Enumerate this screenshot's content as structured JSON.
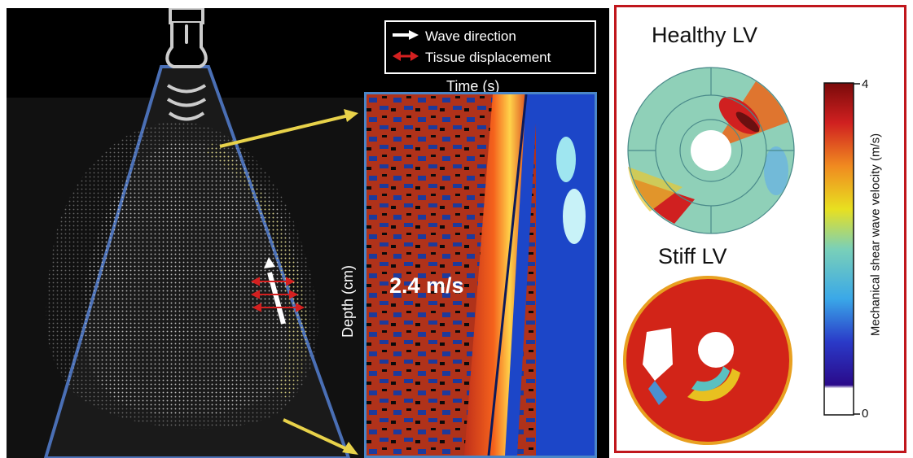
{
  "legend": {
    "wave_direction": "Wave direction",
    "tissue_displacement": "Tissue displacement"
  },
  "mmode": {
    "time_label": "Time (s)",
    "depth_label": "Depth (cm)",
    "speed_label": "2.4 m/s"
  },
  "maps": {
    "healthy_title": "Healthy LV",
    "stiff_title": "Stiff LV"
  },
  "colorbar": {
    "label": "Mechanical shear wave velocity (m/s)",
    "max": "4",
    "min": "0"
  },
  "colors": {
    "probe_beam": "#4a6fb5",
    "yellow_arrow": "#e8d24a",
    "red_frame": "#c0161c",
    "mmode_border": "#4a86c8"
  }
}
